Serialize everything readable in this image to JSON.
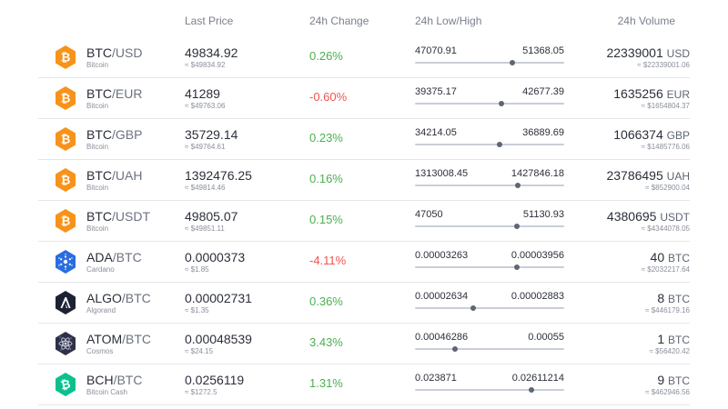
{
  "headers": {
    "last_price": "Last Price",
    "change": "24h Change",
    "low_high": "24h Low/High",
    "volume": "24h Volume"
  },
  "colors": {
    "positive": "#4caf50",
    "negative": "#ef5350",
    "btc_icon": "#f7931a",
    "ada_icon": "#2a6de0",
    "algo_icon": "#1d2233",
    "atom_icon": "#2e3148",
    "bch_icon": "#0ac18e"
  },
  "rows": [
    {
      "icon": "bitcoin-icon",
      "base": "BTC",
      "quote": "/USD",
      "name": "Bitcoin",
      "price": "49834.92",
      "usd": "≈ $49834.92",
      "change": "0.26%",
      "dir": "pos",
      "low": "47070.91",
      "high": "51368.05",
      "range_position": 0.65,
      "volume": "22339001",
      "volume_unit": "USD",
      "volume_usd": "≈ $22339001.06"
    },
    {
      "icon": "bitcoin-icon",
      "base": "BTC",
      "quote": "/EUR",
      "name": "Bitcoin",
      "price": "41289",
      "usd": "≈ $49763.06",
      "change": "-0.60%",
      "dir": "neg",
      "low": "39375.17",
      "high": "42677.39",
      "range_position": 0.58,
      "volume": "1635256",
      "volume_unit": "EUR",
      "volume_usd": "≈ $1654804.37"
    },
    {
      "icon": "bitcoin-icon",
      "base": "BTC",
      "quote": "/GBP",
      "name": "Bitcoin",
      "price": "35729.14",
      "usd": "≈ $49764.61",
      "change": "0.23%",
      "dir": "pos",
      "low": "34214.05",
      "high": "36889.69",
      "range_position": 0.57,
      "volume": "1066374",
      "volume_unit": "GBP",
      "volume_usd": "≈ $1485776.06"
    },
    {
      "icon": "bitcoin-icon",
      "base": "BTC",
      "quote": "/UAH",
      "name": "Bitcoin",
      "price": "1392476.25",
      "usd": "≈ $49814.46",
      "change": "0.16%",
      "dir": "pos",
      "low": "1313008.45",
      "high": "1427846.18",
      "range_position": 0.69,
      "volume": "23786495",
      "volume_unit": "UAH",
      "volume_usd": "≈ $852900.04"
    },
    {
      "icon": "bitcoin-icon",
      "base": "BTC",
      "quote": "/USDT",
      "name": "Bitcoin",
      "price": "49805.07",
      "usd": "≈ $49851.11",
      "change": "0.15%",
      "dir": "pos",
      "low": "47050",
      "high": "51130.93",
      "range_position": 0.68,
      "volume": "4380695",
      "volume_unit": "USDT",
      "volume_usd": "≈ $4344078.05"
    },
    {
      "icon": "cardano-icon",
      "base": "ADA",
      "quote": "/BTC",
      "name": "Cardano",
      "price": "0.0000373",
      "usd": "≈ $1.85",
      "change": "-4.11%",
      "dir": "neg",
      "low": "0.00003263",
      "high": "0.00003956",
      "range_position": 0.68,
      "volume": "40",
      "volume_unit": "BTC",
      "volume_usd": "≈ $2032217.64"
    },
    {
      "icon": "algorand-icon",
      "base": "ALGO",
      "quote": "/BTC",
      "name": "Algorand",
      "price": "0.00002731",
      "usd": "≈ $1.35",
      "change": "0.36%",
      "dir": "pos",
      "low": "0.00002634",
      "high": "0.00002883",
      "range_position": 0.39,
      "volume": "8",
      "volume_unit": "BTC",
      "volume_usd": "≈ $446179.16"
    },
    {
      "icon": "cosmos-icon",
      "base": "ATOM",
      "quote": "/BTC",
      "name": "Cosmos",
      "price": "0.00048539",
      "usd": "≈ $24.15",
      "change": "3.43%",
      "dir": "pos",
      "low": "0.00046286",
      "high": "0.00055",
      "range_position": 0.27,
      "volume": "1",
      "volume_unit": "BTC",
      "volume_usd": "≈ $56420.42"
    },
    {
      "icon": "bitcoin-cash-icon",
      "base": "BCH",
      "quote": "/BTC",
      "name": "Bitcoin Cash",
      "price": "0.0256119",
      "usd": "≈ $1272.5",
      "change": "1.31%",
      "dir": "pos",
      "low": "0.023871",
      "high": "0.02611214",
      "range_position": 0.78,
      "volume": "9",
      "volume_unit": "BTC",
      "volume_usd": "≈ $462946.56"
    }
  ]
}
